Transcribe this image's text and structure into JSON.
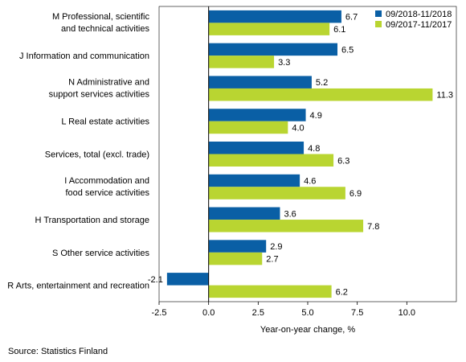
{
  "chart_data": {
    "type": "bar",
    "orientation": "horizontal",
    "categories": [
      [
        "M Professional, scientific",
        "and technical activities"
      ],
      [
        "J Information and communication"
      ],
      [
        "N Administrative and",
        "support services activities"
      ],
      [
        "L Real estate activities"
      ],
      [
        "Services, total (excl. trade)"
      ],
      [
        "I Accommodation and",
        "food service activities"
      ],
      [
        "H Transportation and storage"
      ],
      [
        "S Other service activities"
      ],
      [
        "R Arts, entertainment and recreation"
      ]
    ],
    "series": [
      {
        "name": "09/2018-11/2018",
        "color": "#0a5fa5",
        "values": [
          6.7,
          6.5,
          5.2,
          4.9,
          4.8,
          4.6,
          3.6,
          2.9,
          -2.1
        ],
        "labels": [
          "6.7",
          "6.5",
          "5.2",
          "4.9",
          "4.8",
          "4.6",
          "3.6",
          "2.9",
          "-2.1"
        ]
      },
      {
        "name": "09/2017-11/2017",
        "color": "#b9d531",
        "values": [
          6.1,
          3.3,
          11.3,
          4.0,
          6.3,
          6.9,
          7.8,
          2.7,
          6.2
        ],
        "labels": [
          "6.1",
          "3.3",
          "11.3",
          "4.0",
          "6.3",
          "6.9",
          "7.8",
          "2.7",
          "6.2"
        ]
      }
    ],
    "xlim": [
      -2.5,
      12.5
    ],
    "xticks": [
      -2.5,
      0,
      2.5,
      5,
      7.5,
      10
    ],
    "xtick_labels": [
      "-2.5",
      "0.0",
      "2.5",
      "5.0",
      "7.5",
      "10.0"
    ],
    "xlabel": "Year-on-year change, %",
    "legend_position": "top-right",
    "grid": false
  },
  "source": "Source: Statistics Finland"
}
